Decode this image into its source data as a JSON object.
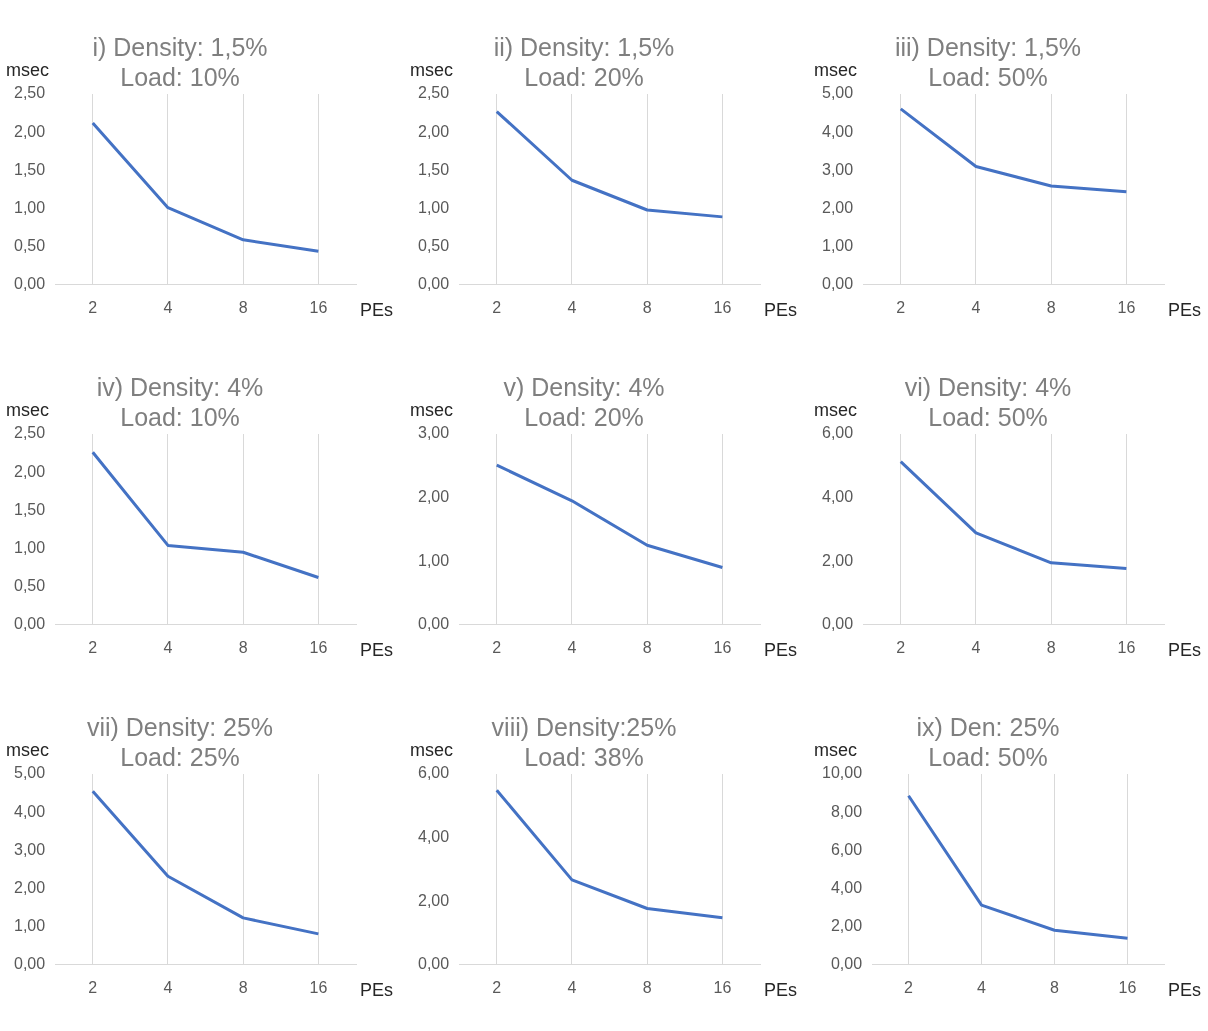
{
  "chart_data": [
    {
      "type": "line",
      "title": "i) Density: 1,5%\nLoad: 10%",
      "xlabel": "PEs",
      "ylabel": "msec",
      "categories": [
        "2",
        "4",
        "8",
        "16"
      ],
      "series": [
        {
          "color": "#4472c4",
          "values": [
            2.12,
            1.01,
            0.59,
            0.44
          ]
        }
      ],
      "ylim": [
        0,
        2.5
      ],
      "yticks": [
        {
          "value": 0,
          "label": "0,00"
        },
        {
          "value": 0.5,
          "label": "0,50"
        },
        {
          "value": 1,
          "label": "1,00"
        },
        {
          "value": 1.5,
          "label": "1,50"
        },
        {
          "value": 2,
          "label": "2,00"
        },
        {
          "value": 2.5,
          "label": "2,50"
        }
      ],
      "grid": "x",
      "legend": false,
      "marker": "none",
      "line_style": "solid"
    },
    {
      "type": "line",
      "title": "ii) Density: 1,5%\nLoad: 20%",
      "xlabel": "PEs",
      "ylabel": "msec",
      "categories": [
        "2",
        "4",
        "8",
        "16"
      ],
      "series": [
        {
          "color": "#4472c4",
          "values": [
            2.27,
            1.37,
            0.98,
            0.89
          ]
        }
      ],
      "ylim": [
        0,
        2.5
      ],
      "yticks": [
        {
          "value": 0,
          "label": "0,00"
        },
        {
          "value": 0.5,
          "label": "0,50"
        },
        {
          "value": 1,
          "label": "1,00"
        },
        {
          "value": 1.5,
          "label": "1,50"
        },
        {
          "value": 2,
          "label": "2,00"
        },
        {
          "value": 2.5,
          "label": "2,50"
        }
      ],
      "grid": "x",
      "legend": false,
      "marker": "none",
      "line_style": "solid"
    },
    {
      "type": "line",
      "title": "iii) Density: 1,5%\nLoad: 50%",
      "xlabel": "PEs",
      "ylabel": "msec",
      "categories": [
        "2",
        "4",
        "8",
        "16"
      ],
      "series": [
        {
          "color": "#4472c4",
          "values": [
            4.61,
            3.1,
            2.59,
            2.44
          ]
        }
      ],
      "ylim": [
        0,
        5
      ],
      "yticks": [
        {
          "value": 0,
          "label": "0,00"
        },
        {
          "value": 1,
          "label": "1,00"
        },
        {
          "value": 2,
          "label": "2,00"
        },
        {
          "value": 3,
          "label": "3,00"
        },
        {
          "value": 4,
          "label": "4,00"
        },
        {
          "value": 5,
          "label": "5,00"
        }
      ],
      "grid": "x",
      "legend": false,
      "marker": "none",
      "line_style": "solid"
    },
    {
      "type": "line",
      "title": "iv) Density: 4%\nLoad: 10%",
      "xlabel": "PEs",
      "ylabel": "msec",
      "categories": [
        "2",
        "4",
        "8",
        "16"
      ],
      "series": [
        {
          "color": "#4472c4",
          "values": [
            2.26,
            1.04,
            0.95,
            0.62
          ]
        }
      ],
      "ylim": [
        0,
        2.5
      ],
      "yticks": [
        {
          "value": 0,
          "label": "0,00"
        },
        {
          "value": 0.5,
          "label": "0,50"
        },
        {
          "value": 1,
          "label": "1,00"
        },
        {
          "value": 1.5,
          "label": "1,50"
        },
        {
          "value": 2,
          "label": "2,00"
        },
        {
          "value": 2.5,
          "label": "2,50"
        }
      ],
      "grid": "x",
      "legend": false,
      "marker": "none",
      "line_style": "solid"
    },
    {
      "type": "line",
      "title": "v) Density: 4%\nLoad: 20%",
      "xlabel": "PEs",
      "ylabel": "msec",
      "categories": [
        "2",
        "4",
        "8",
        "16"
      ],
      "series": [
        {
          "color": "#4472c4",
          "values": [
            2.51,
            1.95,
            1.25,
            0.9
          ]
        }
      ],
      "ylim": [
        0,
        3
      ],
      "yticks": [
        {
          "value": 0,
          "label": "0,00"
        },
        {
          "value": 1,
          "label": "1,00"
        },
        {
          "value": 2,
          "label": "2,00"
        },
        {
          "value": 3,
          "label": "3,00"
        }
      ],
      "grid": "x",
      "legend": false,
      "marker": "none",
      "line_style": "solid"
    },
    {
      "type": "line",
      "title": "vi) Density: 4%\nLoad: 50%",
      "xlabel": "PEs",
      "ylabel": "msec",
      "categories": [
        "2",
        "4",
        "8",
        "16"
      ],
      "series": [
        {
          "color": "#4472c4",
          "values": [
            5.13,
            2.89,
            1.95,
            1.77
          ]
        }
      ],
      "ylim": [
        0,
        6
      ],
      "yticks": [
        {
          "value": 0,
          "label": "0,00"
        },
        {
          "value": 2,
          "label": "2,00"
        },
        {
          "value": 4,
          "label": "4,00"
        },
        {
          "value": 6,
          "label": "6,00"
        }
      ],
      "grid": "x",
      "legend": false,
      "marker": "none",
      "line_style": "solid"
    },
    {
      "type": "line",
      "title": "vii) Density: 25%\nLoad: 25%",
      "xlabel": "PEs",
      "ylabel": "msec",
      "categories": [
        "2",
        "4",
        "8",
        "16"
      ],
      "series": [
        {
          "color": "#4472c4",
          "values": [
            4.55,
            2.32,
            1.23,
            0.81
          ]
        }
      ],
      "ylim": [
        0,
        5
      ],
      "yticks": [
        {
          "value": 0,
          "label": "0,00"
        },
        {
          "value": 1,
          "label": "1,00"
        },
        {
          "value": 2,
          "label": "2,00"
        },
        {
          "value": 3,
          "label": "3,00"
        },
        {
          "value": 4,
          "label": "4,00"
        },
        {
          "value": 5,
          "label": "5,00"
        }
      ],
      "grid": "x",
      "legend": false,
      "marker": "none",
      "line_style": "solid"
    },
    {
      "type": "line",
      "title": "viii) Density:25%\nLoad: 38%",
      "xlabel": "PEs",
      "ylabel": "msec",
      "categories": [
        "2",
        "4",
        "8",
        "16"
      ],
      "series": [
        {
          "color": "#4472c4",
          "values": [
            5.49,
            2.67,
            1.77,
            1.48
          ]
        }
      ],
      "ylim": [
        0,
        6
      ],
      "yticks": [
        {
          "value": 0,
          "label": "0,00"
        },
        {
          "value": 2,
          "label": "2,00"
        },
        {
          "value": 4,
          "label": "4,00"
        },
        {
          "value": 6,
          "label": "6,00"
        }
      ],
      "grid": "x",
      "legend": false,
      "marker": "none",
      "line_style": "solid"
    },
    {
      "type": "line",
      "title": "ix) Den: 25%\nLoad: 50%",
      "xlabel": "PEs",
      "ylabel": "msec",
      "categories": [
        "2",
        "4",
        "8",
        "16"
      ],
      "series": [
        {
          "color": "#4472c4",
          "values": [
            8.86,
            3.13,
            1.81,
            1.39
          ]
        }
      ],
      "ylim": [
        0,
        10
      ],
      "yticks": [
        {
          "value": 0,
          "label": "0,00"
        },
        {
          "value": 2,
          "label": "2,00"
        },
        {
          "value": 4,
          "label": "4,00"
        },
        {
          "value": 6,
          "label": "6,00"
        },
        {
          "value": 8,
          "label": "8,00"
        },
        {
          "value": 10,
          "label": "10,00"
        }
      ],
      "grid": "x",
      "legend": false,
      "marker": "none",
      "line_style": "solid"
    }
  ]
}
